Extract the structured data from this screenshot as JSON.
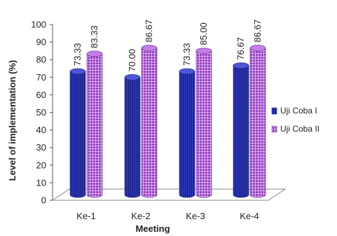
{
  "chart_data": {
    "type": "bar",
    "categories": [
      "Ke-1",
      "Ke-2",
      "Ke-3",
      "Ke-4"
    ],
    "series": [
      {
        "name": "Uji Coba I",
        "values": [
          73.33,
          70.0,
          73.33,
          76.67
        ],
        "labels": [
          "73.33",
          "70.00",
          "73.33",
          "76.67"
        ]
      },
      {
        "name": "Uji Coba II",
        "values": [
          83.33,
          86.67,
          85.0,
          86.67
        ],
        "labels": [
          "83.33",
          "86.67",
          "85.00",
          "86.67"
        ]
      }
    ],
    "title": "",
    "xlabel": "Meeting",
    "ylabel": "Level of implementation (%)",
    "ylim": [
      0,
      100
    ],
    "yticks": [
      0,
      10,
      20,
      30,
      40,
      50,
      60,
      70,
      80,
      90,
      100
    ],
    "style": "3d-cylinder",
    "grid": false,
    "legend_position": "right",
    "colors": {
      "series1_body": "#2b35b5",
      "series1_top": "#4d57d6",
      "series2_body": "#9a3fc4",
      "series2_top": "#c27ee6",
      "floor": "#ffffff",
      "axis": "#555555"
    }
  }
}
